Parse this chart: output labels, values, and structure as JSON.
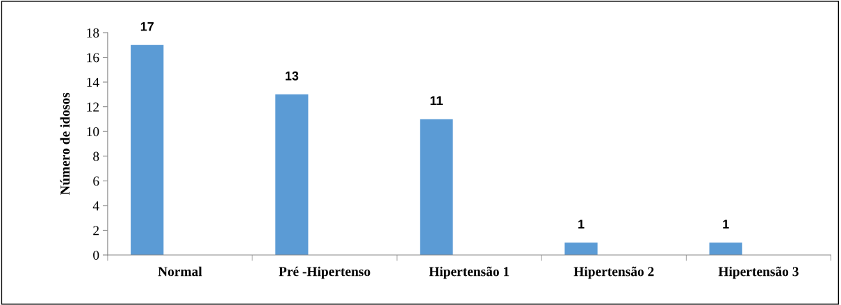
{
  "chart_data": {
    "type": "bar",
    "ylabel": "Número de idosos",
    "categories": [
      "Normal",
      "Pré -Hipertenso",
      "Hipertensão 1",
      "Hipertensão 2",
      "Hipertensão 3"
    ],
    "values": [
      17,
      13,
      11,
      1,
      1
    ],
    "color": "#5b9bd5",
    "ylim": [
      0,
      18
    ],
    "yticks": [
      0,
      2,
      4,
      6,
      8,
      10,
      12,
      14,
      16,
      18
    ],
    "grid": false,
    "data_labels": true
  }
}
